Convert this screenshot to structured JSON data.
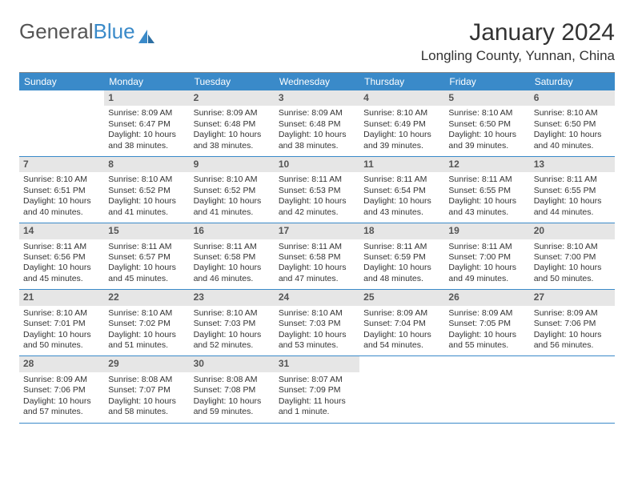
{
  "logo": {
    "text1": "General",
    "text2": "Blue"
  },
  "title": "January 2024",
  "location": "Longling County, Yunnan, China",
  "colors": {
    "header_bg": "#3a8ac9",
    "daynum_bg": "#e6e6e6",
    "week_divider": "#3a8ac9",
    "logo_blue": "#3a8ac9",
    "text": "#333333",
    "background": "#ffffff"
  },
  "day_headers": [
    "Sunday",
    "Monday",
    "Tuesday",
    "Wednesday",
    "Thursday",
    "Friday",
    "Saturday"
  ],
  "start_offset": 1,
  "days": [
    {
      "n": 1,
      "sunrise": "8:09 AM",
      "sunset": "6:47 PM",
      "daylight": "10 hours and 38 minutes."
    },
    {
      "n": 2,
      "sunrise": "8:09 AM",
      "sunset": "6:48 PM",
      "daylight": "10 hours and 38 minutes."
    },
    {
      "n": 3,
      "sunrise": "8:09 AM",
      "sunset": "6:48 PM",
      "daylight": "10 hours and 38 minutes."
    },
    {
      "n": 4,
      "sunrise": "8:10 AM",
      "sunset": "6:49 PM",
      "daylight": "10 hours and 39 minutes."
    },
    {
      "n": 5,
      "sunrise": "8:10 AM",
      "sunset": "6:50 PM",
      "daylight": "10 hours and 39 minutes."
    },
    {
      "n": 6,
      "sunrise": "8:10 AM",
      "sunset": "6:50 PM",
      "daylight": "10 hours and 40 minutes."
    },
    {
      "n": 7,
      "sunrise": "8:10 AM",
      "sunset": "6:51 PM",
      "daylight": "10 hours and 40 minutes."
    },
    {
      "n": 8,
      "sunrise": "8:10 AM",
      "sunset": "6:52 PM",
      "daylight": "10 hours and 41 minutes."
    },
    {
      "n": 9,
      "sunrise": "8:10 AM",
      "sunset": "6:52 PM",
      "daylight": "10 hours and 41 minutes."
    },
    {
      "n": 10,
      "sunrise": "8:11 AM",
      "sunset": "6:53 PM",
      "daylight": "10 hours and 42 minutes."
    },
    {
      "n": 11,
      "sunrise": "8:11 AM",
      "sunset": "6:54 PM",
      "daylight": "10 hours and 43 minutes."
    },
    {
      "n": 12,
      "sunrise": "8:11 AM",
      "sunset": "6:55 PM",
      "daylight": "10 hours and 43 minutes."
    },
    {
      "n": 13,
      "sunrise": "8:11 AM",
      "sunset": "6:55 PM",
      "daylight": "10 hours and 44 minutes."
    },
    {
      "n": 14,
      "sunrise": "8:11 AM",
      "sunset": "6:56 PM",
      "daylight": "10 hours and 45 minutes."
    },
    {
      "n": 15,
      "sunrise": "8:11 AM",
      "sunset": "6:57 PM",
      "daylight": "10 hours and 45 minutes."
    },
    {
      "n": 16,
      "sunrise": "8:11 AM",
      "sunset": "6:58 PM",
      "daylight": "10 hours and 46 minutes."
    },
    {
      "n": 17,
      "sunrise": "8:11 AM",
      "sunset": "6:58 PM",
      "daylight": "10 hours and 47 minutes."
    },
    {
      "n": 18,
      "sunrise": "8:11 AM",
      "sunset": "6:59 PM",
      "daylight": "10 hours and 48 minutes."
    },
    {
      "n": 19,
      "sunrise": "8:11 AM",
      "sunset": "7:00 PM",
      "daylight": "10 hours and 49 minutes."
    },
    {
      "n": 20,
      "sunrise": "8:10 AM",
      "sunset": "7:00 PM",
      "daylight": "10 hours and 50 minutes."
    },
    {
      "n": 21,
      "sunrise": "8:10 AM",
      "sunset": "7:01 PM",
      "daylight": "10 hours and 50 minutes."
    },
    {
      "n": 22,
      "sunrise": "8:10 AM",
      "sunset": "7:02 PM",
      "daylight": "10 hours and 51 minutes."
    },
    {
      "n": 23,
      "sunrise": "8:10 AM",
      "sunset": "7:03 PM",
      "daylight": "10 hours and 52 minutes."
    },
    {
      "n": 24,
      "sunrise": "8:10 AM",
      "sunset": "7:03 PM",
      "daylight": "10 hours and 53 minutes."
    },
    {
      "n": 25,
      "sunrise": "8:09 AM",
      "sunset": "7:04 PM",
      "daylight": "10 hours and 54 minutes."
    },
    {
      "n": 26,
      "sunrise": "8:09 AM",
      "sunset": "7:05 PM",
      "daylight": "10 hours and 55 minutes."
    },
    {
      "n": 27,
      "sunrise": "8:09 AM",
      "sunset": "7:06 PM",
      "daylight": "10 hours and 56 minutes."
    },
    {
      "n": 28,
      "sunrise": "8:09 AM",
      "sunset": "7:06 PM",
      "daylight": "10 hours and 57 minutes."
    },
    {
      "n": 29,
      "sunrise": "8:08 AM",
      "sunset": "7:07 PM",
      "daylight": "10 hours and 58 minutes."
    },
    {
      "n": 30,
      "sunrise": "8:08 AM",
      "sunset": "7:08 PM",
      "daylight": "10 hours and 59 minutes."
    },
    {
      "n": 31,
      "sunrise": "8:07 AM",
      "sunset": "7:09 PM",
      "daylight": "11 hours and 1 minute."
    }
  ],
  "labels": {
    "sunrise_prefix": "Sunrise: ",
    "sunset_prefix": "Sunset: ",
    "daylight_prefix": "Daylight: "
  }
}
